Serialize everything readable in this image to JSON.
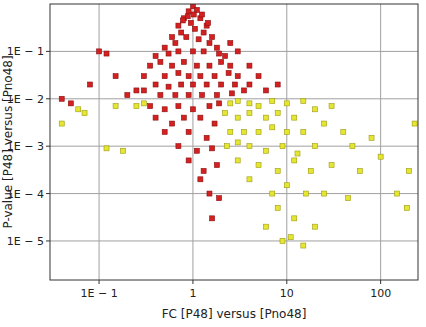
{
  "chart_data": {
    "type": "scatter",
    "x_label": "FC [P48] versus [Pno48]",
    "y_label": "P-value [P48] versus [Pno48]",
    "log": true,
    "grid": true,
    "marker": "square",
    "xlim": [
      0.03,
      250
    ],
    "xticks": [
      {
        "value": 0.1,
        "label": "1E − 1"
      },
      1,
      10,
      100
    ],
    "ylim": [
      1.5e-06,
      1
    ],
    "yticks": [
      {
        "value": 0.1,
        "label": "1E − 1"
      },
      {
        "value": 0.01,
        "label": "1E − 2"
      },
      {
        "value": 0.001,
        "label": "1E − 3"
      },
      {
        "value": 0.0001,
        "label": "1E − 4"
      },
      {
        "value": 1e-05,
        "label": "1E − 5"
      }
    ],
    "series": [
      {
        "color": "#d42020",
        "x": [
          1,
          0.9,
          1.1,
          0.8,
          1.2,
          0.7,
          1.4,
          0.95,
          1.05,
          0.6,
          1.6,
          0.75,
          1.3,
          0.5,
          1.8,
          0.65,
          1.5,
          0.85,
          1.15,
          0.4,
          2.2,
          0.55,
          1.9,
          0.7,
          1.0,
          1.3,
          0.35,
          2.5,
          0.45,
          2.0,
          0.6,
          0.8,
          1.1,
          1.5,
          0.3,
          3,
          0.5,
          0.7,
          0.9,
          1.2,
          1.7,
          2.4,
          0.4,
          0.55,
          0.75,
          1,
          1.4,
          2,
          2.8,
          0.3,
          3.5,
          0.45,
          0.65,
          0.9,
          1.25,
          1.8,
          2.6,
          0.2,
          0.15,
          0.12,
          0.1,
          0.04,
          0.05,
          0.08,
          0.25,
          0.35,
          0.5,
          0.7,
          1,
          1.5,
          1.9,
          0.4,
          0.6,
          0.8,
          1.2,
          1.7,
          0.5,
          0.9,
          1.4,
          0.7,
          1.1,
          1.6,
          0.9,
          1.3,
          1.8,
          1.5,
          1.9,
          1.2,
          1.6,
          4,
          5,
          6,
          3,
          4,
          2.5,
          8,
          1.02,
          0.88,
          1.25,
          0.78,
          1.45
        ],
        "values": [
          0.9,
          0.7,
          0.75,
          0.5,
          0.5,
          0.35,
          0.35,
          0.4,
          0.3,
          0.2,
          0.2,
          0.25,
          0.25,
          0.12,
          0.12,
          0.15,
          0.15,
          0.2,
          0.18,
          0.08,
          0.08,
          0.09,
          0.09,
          0.1,
          0.1,
          0.1,
          0.05,
          0.05,
          0.06,
          0.06,
          0.05,
          0.06,
          0.05,
          0.05,
          0.03,
          0.03,
          0.03,
          0.035,
          0.03,
          0.03,
          0.03,
          0.035,
          0.02,
          0.018,
          0.02,
          0.02,
          0.02,
          0.02,
          0.02,
          0.015,
          0.015,
          0.012,
          0.012,
          0.012,
          0.012,
          0.012,
          0.013,
          0.012,
          0.03,
          0.09,
          0.1,
          0.01,
          0.008,
          0.02,
          0.015,
          0.007,
          0.006,
          0.007,
          0.006,
          0.007,
          0.008,
          0.004,
          0.003,
          0.004,
          0.004,
          0.003,
          0.002,
          0.002,
          0.0015,
          0.001,
          0.0008,
          0.0009,
          0.0005,
          0.0003,
          0.0004,
          0.0001,
          8e-05,
          0.0002,
          3e-05,
          0.02,
          0.03,
          0.015,
          0.1,
          0.05,
          0.15,
          0.02,
          0.6,
          0.55,
          0.6,
          0.45,
          0.4
        ]
      },
      {
        "color": "#e6e632",
        "x": [
          2.5,
          3,
          4,
          5,
          7,
          10,
          15,
          2.2,
          3,
          4,
          6,
          8,
          12,
          20,
          30,
          2.5,
          3.5,
          5,
          7,
          10,
          15,
          25,
          40,
          2.3,
          3,
          4,
          6,
          9,
          13,
          20,
          50,
          80,
          3,
          5,
          8,
          12,
          18,
          30,
          60,
          100,
          4,
          7,
          10,
          16,
          25,
          45,
          8,
          12,
          9,
          11,
          15,
          20,
          6,
          0.04,
          0.06,
          0.07,
          0.15,
          0.18,
          0.3,
          0.25,
          0.12,
          230,
          200,
          150,
          190
        ],
        "values": [
          0.008,
          0.009,
          0.008,
          0.007,
          0.009,
          0.008,
          0.009,
          0.005,
          0.004,
          0.005,
          0.004,
          0.005,
          0.004,
          0.006,
          0.007,
          0.002,
          0.002,
          0.002,
          0.0025,
          0.002,
          0.002,
          0.003,
          0.002,
          0.001,
          0.0012,
          0.001,
          0.0008,
          0.001,
          0.0007,
          0.001,
          0.001,
          0.0015,
          0.0005,
          0.0004,
          0.0003,
          0.0005,
          0.0003,
          0.0004,
          0.0003,
          0.0006,
          0.0002,
          0.0001,
          0.00015,
          0.0001,
          0.0001,
          8e-05,
          5e-05,
          3e-05,
          1e-05,
          1.2e-05,
          8e-06,
          2e-05,
          2e-05,
          0.003,
          0.006,
          0.005,
          0.007,
          0.0008,
          0.008,
          0.007,
          0.0009,
          0.003,
          0.0003,
          0.0001,
          5e-05
        ]
      }
    ]
  }
}
